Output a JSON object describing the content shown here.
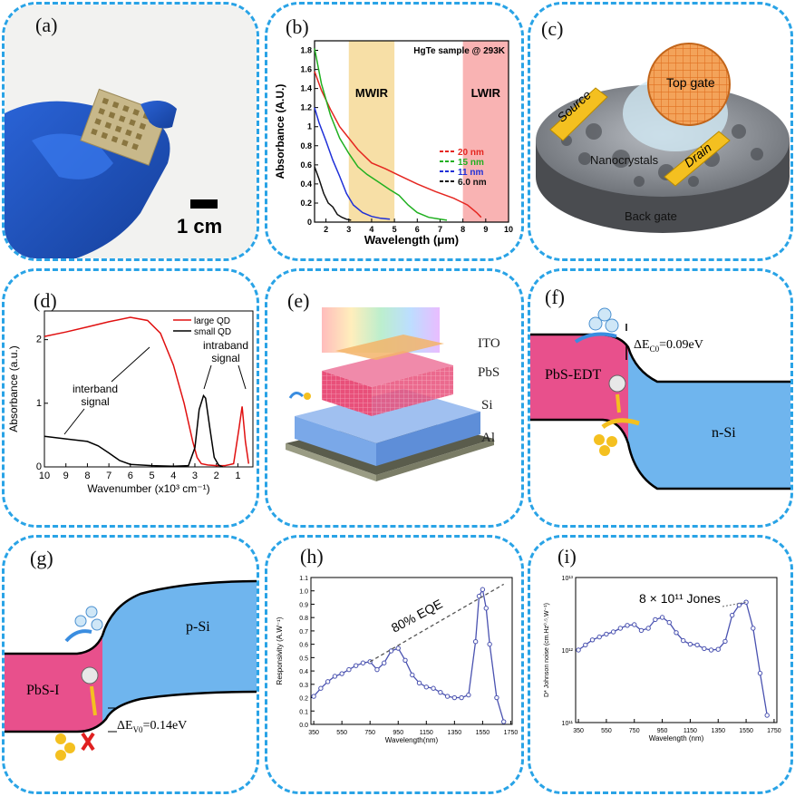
{
  "panels": {
    "a": {
      "label": "(a)",
      "scale_bar": "1 cm"
    },
    "b": {
      "label": "(b)"
    },
    "c": {
      "label": "(c)",
      "top_gate": "Top gate",
      "source": "Source",
      "drain": "Drain",
      "nanocrystals": "Nanocrystals",
      "back_gate": "Back gate"
    },
    "d": {
      "label": "(d)",
      "annot_interband": "interband\nsignal",
      "annot_interband_l1": "interband",
      "annot_interband_l2": "signal",
      "annot_intraband_l1": "intraband",
      "annot_intraband_l2": "signal"
    },
    "e": {
      "label": "(e)",
      "layers": [
        "ITO",
        "PbS",
        "Si",
        "Al"
      ]
    },
    "f": {
      "label": "(f)",
      "left_region": "PbS-EDT",
      "right_region": "n-Si",
      "delta": "ΔE",
      "delta_sub": "C0",
      "delta_val": "=0.09eV"
    },
    "g": {
      "label": "(g)",
      "left_region": "PbS-I",
      "right_region": "p-Si",
      "delta": "ΔE",
      "delta_sub": "V0",
      "delta_val": "=0.14eV"
    },
    "h": {
      "label": "(h)",
      "annotation": "80% EQE"
    },
    "i": {
      "label": "(i)",
      "annotation": "8 × 10¹¹ Jones"
    }
  },
  "chart_data": [
    {
      "id": "b",
      "type": "line",
      "title": "HgTe sample @ 293K",
      "xlabel": "Wavelength (μm)",
      "ylabel": "Absorbance (A.U.)",
      "xlim": [
        1.5,
        10
      ],
      "ylim": [
        0,
        1.9
      ],
      "xticks": [
        2,
        3,
        4,
        5,
        6,
        7,
        8,
        9,
        10
      ],
      "yticks": [
        0.0,
        0.2,
        0.4,
        0.6,
        0.8,
        1.0,
        1.2,
        1.4,
        1.6,
        1.8
      ],
      "bands": [
        {
          "name": "MWIR",
          "from": 3,
          "to": 5,
          "color": "#f7dfa6"
        },
        {
          "name": "LWIR",
          "from": 8,
          "to": 10,
          "color": "#f9b3b3"
        }
      ],
      "legend_position": "right",
      "series": [
        {
          "name": "20 nm",
          "color": "#e52620",
          "x": [
            1.5,
            1.8,
            2.2,
            2.6,
            3.0,
            3.4,
            4.0,
            4.6,
            5.2,
            6.0,
            6.8,
            7.6,
            8.2,
            8.6,
            8.8
          ],
          "y": [
            1.58,
            1.38,
            1.18,
            1.0,
            0.88,
            0.76,
            0.62,
            0.56,
            0.49,
            0.4,
            0.32,
            0.25,
            0.18,
            0.1,
            0.05
          ]
        },
        {
          "name": "15 nm",
          "color": "#20b020",
          "x": [
            1.5,
            1.8,
            2.2,
            2.6,
            3.0,
            3.4,
            3.8,
            4.3,
            4.8,
            5.2,
            5.6,
            6.0,
            6.5,
            7.0,
            7.3
          ],
          "y": [
            1.82,
            1.45,
            1.12,
            0.88,
            0.72,
            0.58,
            0.5,
            0.42,
            0.34,
            0.28,
            0.18,
            0.1,
            0.05,
            0.03,
            0.02
          ]
        },
        {
          "name": "11 nm",
          "color": "#1f30d8",
          "x": [
            1.5,
            1.7,
            2.0,
            2.3,
            2.6,
            2.9,
            3.2,
            3.6,
            4.0,
            4.4,
            4.8
          ],
          "y": [
            1.2,
            1.04,
            0.85,
            0.65,
            0.48,
            0.3,
            0.18,
            0.1,
            0.06,
            0.04,
            0.03
          ]
        },
        {
          "name": "6.0 nm",
          "color": "#111111",
          "x": [
            1.5,
            1.7,
            1.9,
            2.1,
            2.3,
            2.5,
            2.7,
            2.9,
            3.1
          ],
          "y": [
            0.58,
            0.45,
            0.3,
            0.2,
            0.16,
            0.08,
            0.05,
            0.03,
            0.02
          ]
        }
      ]
    },
    {
      "id": "d",
      "type": "line",
      "xlabel": "Wavenumber (x10³ cm⁻¹)",
      "ylabel": "Absorbance (a.u.)",
      "xlim": [
        10,
        0.3
      ],
      "ylim": [
        0,
        2.45
      ],
      "xticks": [
        10,
        9,
        8,
        7,
        6,
        5,
        4,
        3,
        2,
        1
      ],
      "yticks": [
        0,
        1,
        2
      ],
      "legend_position": "top-right",
      "series": [
        {
          "name": "large QD",
          "color": "#e01010",
          "x": [
            10,
            9,
            8,
            7,
            6,
            5.2,
            4.6,
            4.0,
            3.5,
            3.1,
            2.9,
            2.7,
            2.4,
            2.0,
            1.6,
            1.2,
            0.95,
            0.8,
            0.65,
            0.5
          ],
          "y": [
            2.05,
            2.12,
            2.2,
            2.28,
            2.35,
            2.3,
            2.1,
            1.6,
            1.0,
            0.4,
            0.15,
            0.05,
            0.03,
            0.02,
            0.02,
            0.05,
            0.6,
            0.95,
            0.4,
            0.05
          ]
        },
        {
          "name": "small QD",
          "color": "#000000",
          "x": [
            10,
            9,
            8.5,
            8,
            7.5,
            7,
            6.5,
            6,
            5,
            4,
            3.3,
            3.0,
            2.8,
            2.6,
            2.5,
            2.3,
            2.1,
            1.9,
            1.7
          ],
          "y": [
            0.48,
            0.44,
            0.42,
            0.4,
            0.33,
            0.22,
            0.1,
            0.04,
            0.02,
            0.01,
            0.02,
            0.3,
            0.9,
            1.12,
            1.08,
            0.6,
            0.15,
            0.03,
            0.0
          ]
        }
      ]
    },
    {
      "id": "h",
      "type": "line",
      "xlabel": "Wavelength(nm)",
      "ylabel": "Responsivity (A.W⁻¹)",
      "xlim": [
        330,
        1760
      ],
      "ylim": [
        0,
        1.1
      ],
      "xticks": [
        350,
        550,
        750,
        950,
        1150,
        1350,
        1550,
        1750
      ],
      "yticks": [
        0.0,
        0.1,
        0.2,
        0.3,
        0.4,
        0.5,
        0.6,
        0.7,
        0.8,
        0.9,
        1.0,
        1.1
      ],
      "series": [
        {
          "name": "",
          "color": "#4a52b0",
          "x": [
            350,
            400,
            450,
            500,
            550,
            600,
            650,
            700,
            750,
            800,
            850,
            900,
            950,
            1000,
            1050,
            1100,
            1150,
            1200,
            1250,
            1300,
            1350,
            1400,
            1450,
            1500,
            1525,
            1550,
            1575,
            1600,
            1650,
            1700
          ],
          "y": [
            0.21,
            0.27,
            0.32,
            0.36,
            0.38,
            0.41,
            0.44,
            0.46,
            0.47,
            0.41,
            0.46,
            0.55,
            0.57,
            0.48,
            0.37,
            0.31,
            0.28,
            0.27,
            0.24,
            0.21,
            0.2,
            0.2,
            0.22,
            0.62,
            0.96,
            1.01,
            0.87,
            0.6,
            0.2,
            0.02
          ]
        },
        {
          "name": "",
          "color": "#555555",
          "dashed": true,
          "x": [
            750,
            1700
          ],
          "y": [
            0.47,
            1.05
          ]
        }
      ]
    },
    {
      "id": "i",
      "type": "line",
      "xlabel": "Wavelength (nm)",
      "ylabel": "D* Johnson noise (cm.Hz⁰·⁵.W⁻¹)",
      "xlim": [
        330,
        1770
      ],
      "ylim_log": [
        11,
        13
      ],
      "yticks_labels": [
        "10¹¹",
        "10¹²",
        "10¹³"
      ],
      "xticks": [
        350,
        550,
        750,
        950,
        1150,
        1350,
        1550,
        1750
      ],
      "series": [
        {
          "name": "",
          "color": "#4a52b0",
          "x": [
            350,
            400,
            450,
            500,
            550,
            600,
            650,
            700,
            750,
            800,
            850,
            900,
            950,
            1000,
            1050,
            1100,
            1150,
            1200,
            1250,
            1300,
            1350,
            1400,
            1450,
            1500,
            1550,
            1600,
            1650,
            1700
          ],
          "y": [
            12.0,
            12.07,
            12.14,
            12.18,
            12.22,
            12.25,
            12.3,
            12.34,
            12.35,
            12.27,
            12.3,
            12.42,
            12.45,
            12.38,
            12.24,
            12.13,
            12.08,
            12.07,
            12.02,
            12.0,
            12.01,
            12.12,
            12.48,
            12.62,
            12.66,
            12.3,
            11.68,
            11.1
          ]
        }
      ]
    }
  ]
}
